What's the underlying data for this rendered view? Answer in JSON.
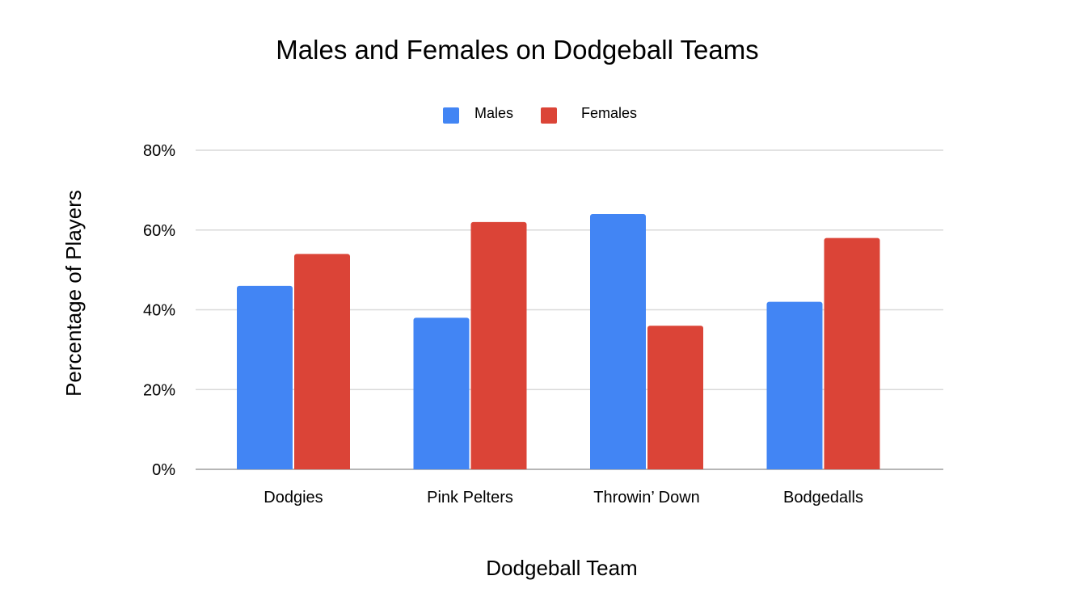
{
  "chart_data": {
    "type": "bar",
    "title": "Males and Females on Dodgeball Teams",
    "xlabel": "Dodgeball Team",
    "ylabel": "Percentage of Players",
    "categories": [
      "Dodgies",
      "Pink Pelters",
      "Throwin’ Down",
      "Bodgedalls"
    ],
    "series": [
      {
        "name": "Males",
        "values": [
          46,
          38,
          64,
          42
        ],
        "color": "#4285f4"
      },
      {
        "name": "Females",
        "values": [
          54,
          62,
          36,
          58
        ],
        "color": "#db4437"
      }
    ],
    "ylim": [
      0,
      80
    ],
    "yticks": [
      0,
      20,
      40,
      60,
      80
    ],
    "ytick_labels": [
      "0%",
      "20%",
      "40%",
      "60%",
      "80%"
    ],
    "grid": true,
    "legend_position": "top-center"
  }
}
